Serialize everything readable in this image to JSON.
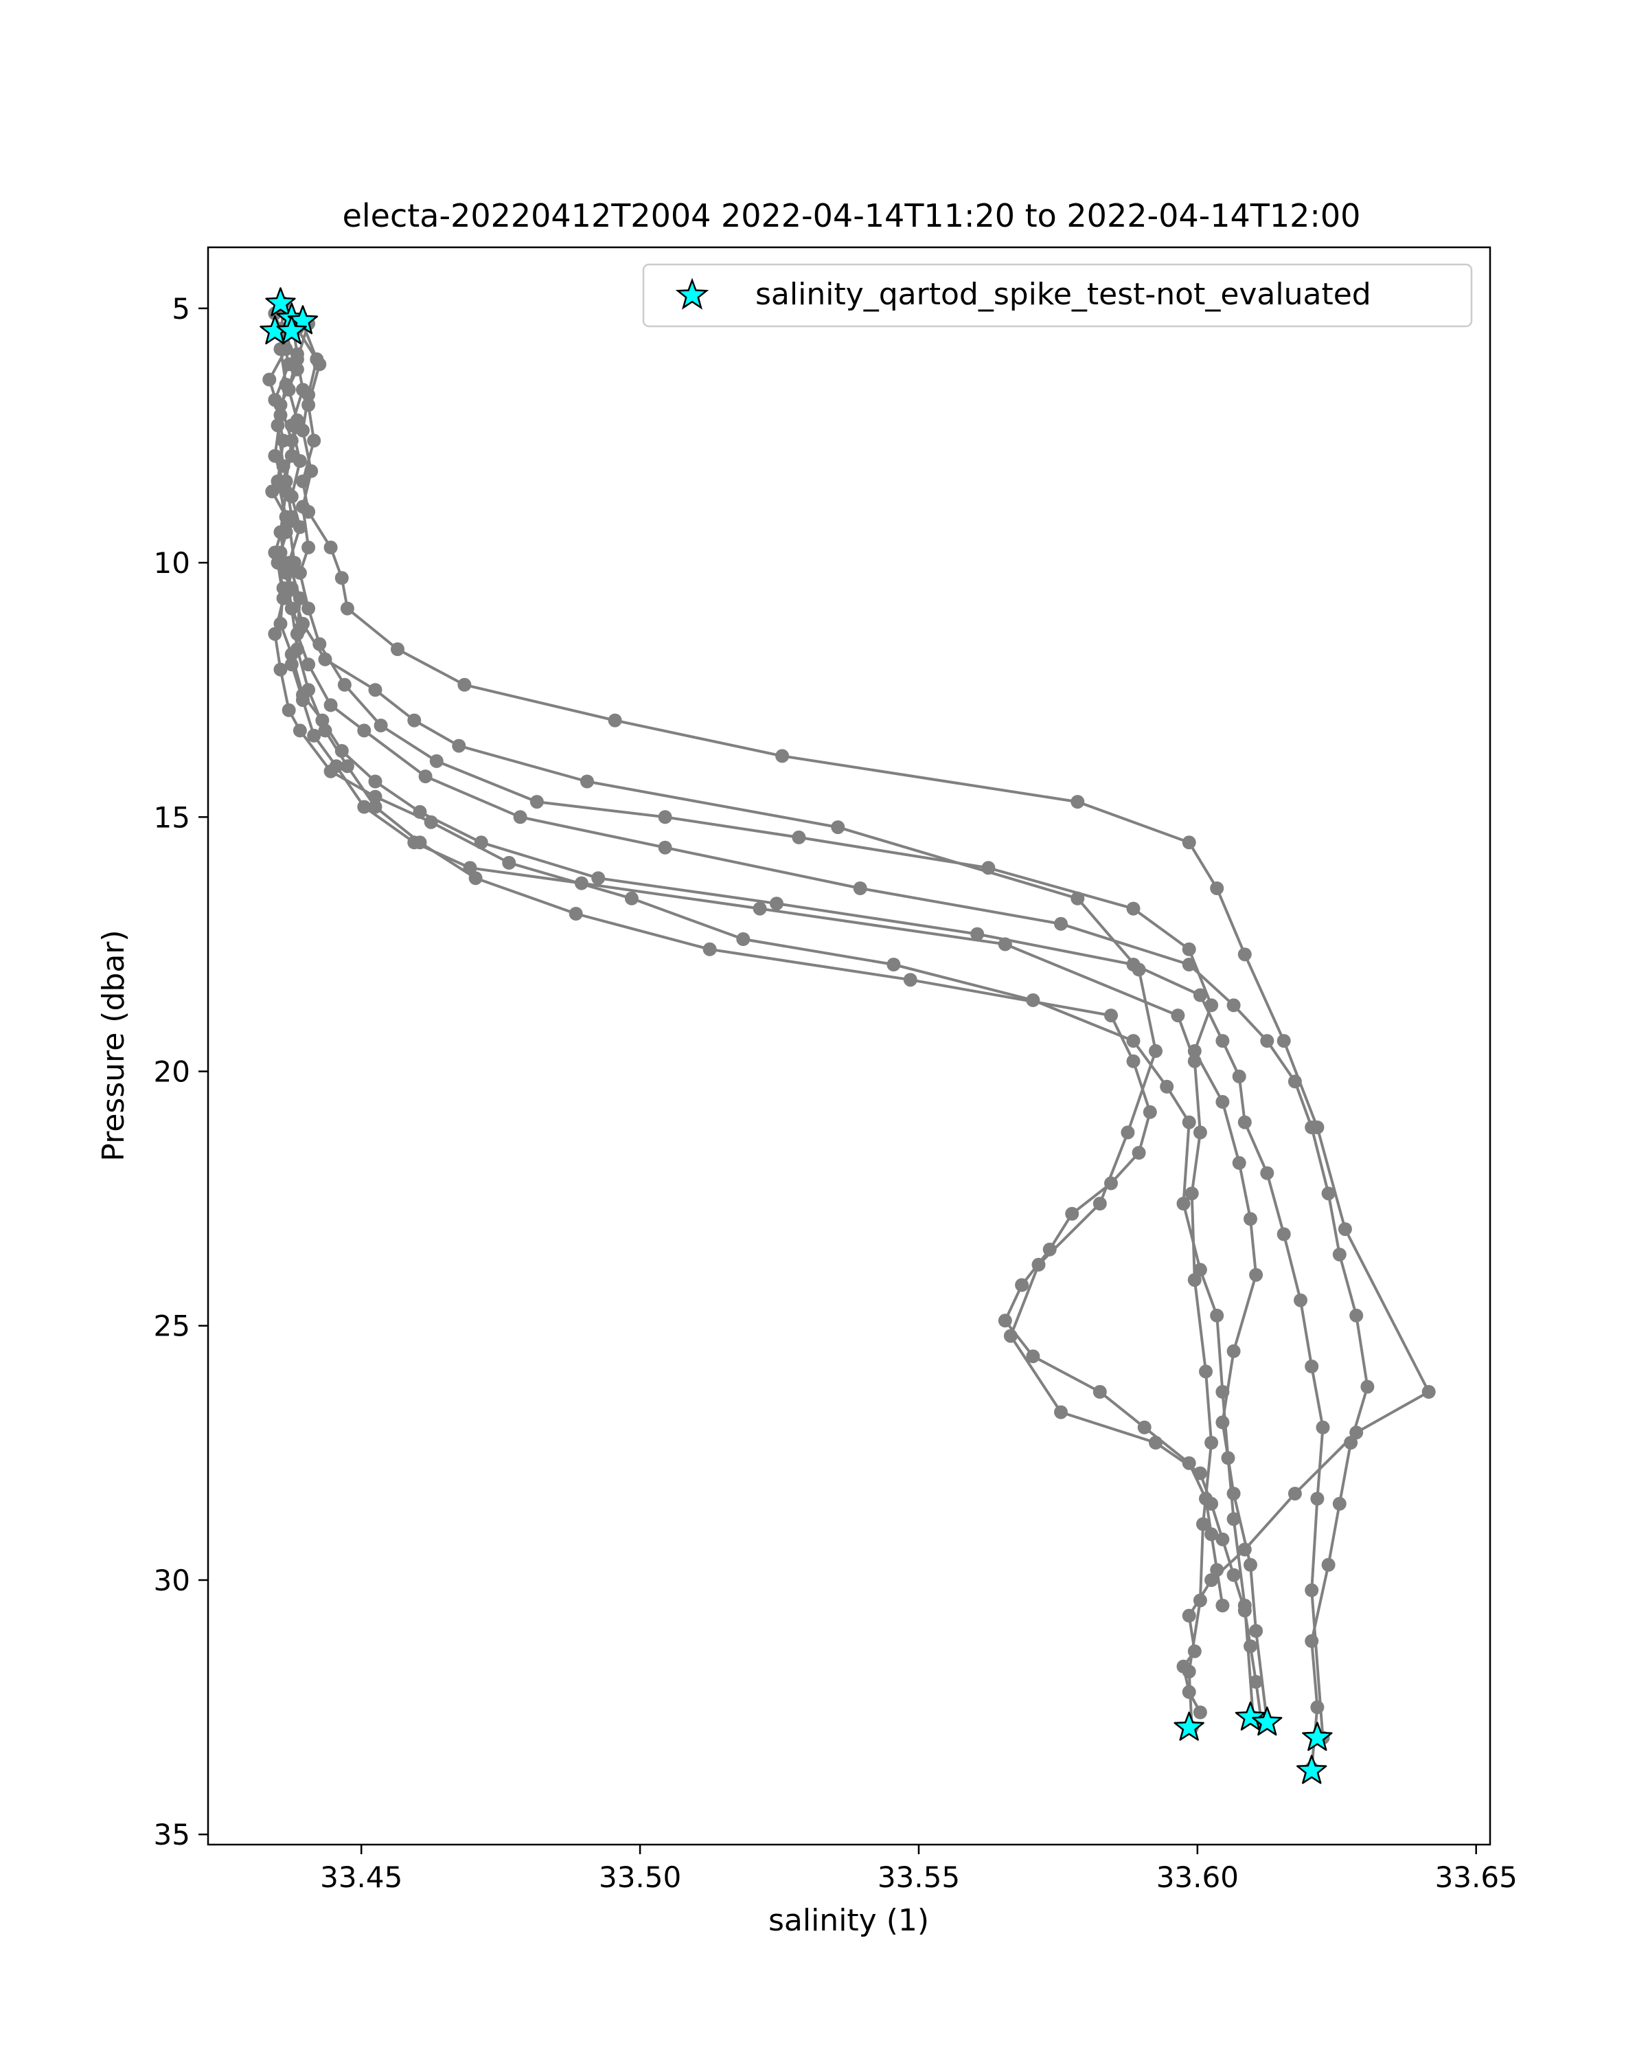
{
  "chart_data": {
    "type": "line",
    "title": "electa-20220412T2004 2022-04-14T11:20 to 2022-04-14T12:00",
    "xlabel": "salinity (1)",
    "ylabel": "Pressure (dbar)",
    "xlim": [
      33.4225,
      33.6525
    ],
    "ylim": [
      35.2,
      3.8
    ],
    "y_inverted": true,
    "xticks": [
      33.45,
      33.5,
      33.55,
      33.6,
      33.65
    ],
    "xtick_labels": [
      "33.45",
      "33.50",
      "33.55",
      "33.60",
      "33.65"
    ],
    "yticks": [
      5,
      10,
      15,
      20,
      25,
      30,
      35
    ],
    "ytick_labels": [
      "5",
      "10",
      "15",
      "20",
      "25",
      "30",
      "35"
    ],
    "grid": false,
    "legend_position": "top-right",
    "colors": {
      "profile": "#808080",
      "flag_fill": "#00ffff",
      "flag_edge": "#000000"
    },
    "series": [
      {
        "kind": "profile",
        "x": [
          33.436,
          33.4355,
          33.4365,
          33.435,
          33.436,
          33.434,
          33.437,
          33.438,
          33.4365,
          33.439,
          33.4375,
          33.4395,
          33.4415,
          33.4455,
          33.4505,
          33.4595,
          33.4695,
          33.4895,
          33.5215,
          33.5655,
          33.5965,
          33.5995,
          33.6005,
          33.599,
          33.5995,
          33.6015,
          33.6025,
          33.601,
          33.6005,
          33.5985,
          33.599
        ],
        "y": [
          4.9,
          5.8,
          6.5,
          7.3,
          8.1,
          8.6,
          9.2,
          10.0,
          10.6,
          11.3,
          12.0,
          12.7,
          13.4,
          14.0,
          14.8,
          15.5,
          16.0,
          16.3,
          16.8,
          17.5,
          18.9,
          19.8,
          21.2,
          22.4,
          24.1,
          25.9,
          27.3,
          28.9,
          30.4,
          31.8,
          32.9
        ]
      },
      {
        "kind": "profile",
        "x": [
          33.4375,
          33.4385,
          33.437,
          33.4385,
          33.4375,
          33.4355,
          33.4365,
          33.435,
          33.436,
          33.4345,
          33.4355,
          33.437,
          33.439,
          33.4445,
          33.4525,
          33.4625,
          33.4765,
          33.4985,
          33.5185,
          33.5455,
          33.5705,
          33.5885,
          33.5945,
          33.5985,
          33.5975,
          33.6005,
          33.6035,
          33.6045,
          33.6055,
          33.6065,
          33.6085,
          33.61
        ],
        "y": [
          5.2,
          5.9,
          6.6,
          7.2,
          7.9,
          8.5,
          9.4,
          10.0,
          10.7,
          11.4,
          12.1,
          12.9,
          13.3,
          14.1,
          14.6,
          15.1,
          15.9,
          16.6,
          17.4,
          17.9,
          18.6,
          19.4,
          20.3,
          21.0,
          22.6,
          23.9,
          24.8,
          26.3,
          27.6,
          28.8,
          30.5,
          32.7
        ]
      },
      {
        "kind": "profile",
        "x": [
          33.4395,
          33.442,
          33.4405,
          33.4395,
          33.441,
          33.4395,
          33.4405,
          33.439,
          33.4405,
          33.4425,
          33.447,
          33.4535,
          33.4635,
          33.4815,
          33.5045,
          33.5285,
          33.5625,
          33.5885,
          33.5985,
          33.6025,
          33.5995,
          33.6045,
          33.6075,
          33.6095,
          33.6105,
          33.6065,
          33.6045,
          33.6065,
          33.6095,
          33.6105,
          33.6125
        ],
        "y": [
          5.3,
          6.0,
          6.7,
          7.4,
          8.2,
          8.9,
          9.7,
          10.2,
          10.9,
          11.6,
          12.4,
          13.2,
          13.9,
          14.7,
          15.0,
          15.4,
          16.0,
          16.8,
          17.6,
          18.7,
          19.6,
          20.6,
          21.8,
          22.9,
          24.0,
          25.5,
          26.9,
          28.3,
          29.7,
          31.0,
          32.8
        ]
      },
      {
        "kind": "profile",
        "x": [
          33.4355,
          33.437,
          33.4345,
          33.436,
          33.435,
          33.4365,
          33.4345,
          33.436,
          33.4355,
          33.4375,
          33.4395,
          33.443,
          33.4465,
          33.4525,
          33.4605,
          33.4715,
          33.4925,
          33.5245,
          33.5605,
          33.5885,
          33.6005,
          33.6045,
          33.6075,
          33.6085,
          33.6125,
          33.6155,
          33.6185,
          33.6205,
          33.6225,
          33.6215,
          33.6205,
          33.6225
        ],
        "y": [
          5.4,
          6.1,
          6.8,
          7.6,
          8.4,
          9.1,
          9.8,
          10.5,
          11.2,
          11.8,
          12.6,
          13.1,
          13.7,
          14.3,
          14.9,
          15.5,
          16.2,
          16.7,
          17.3,
          17.9,
          18.5,
          19.4,
          20.1,
          21.0,
          22.0,
          23.2,
          24.5,
          25.8,
          27.0,
          28.4,
          30.2,
          33.1
        ]
      },
      {
        "kind": "profile",
        "x": [
          33.4405,
          33.4385,
          33.4395,
          33.4375,
          33.439,
          33.4375,
          33.439,
          33.437,
          33.439,
          33.4385,
          33.4405,
          33.4445,
          33.4505,
          33.4615,
          33.4785,
          33.5045,
          33.5395,
          33.5755,
          33.5985,
          33.6065,
          33.6125,
          33.6175,
          33.6205,
          33.6235,
          33.6255,
          33.6285,
          33.6305,
          33.6275,
          33.6255,
          33.6235,
          33.6205,
          33.6215,
          33.6205
        ],
        "y": [
          5.3,
          6.0,
          6.6,
          7.3,
          8.0,
          8.7,
          9.3,
          10.0,
          10.7,
          11.4,
          12.0,
          12.8,
          13.3,
          14.2,
          15.0,
          15.6,
          16.4,
          17.1,
          17.9,
          18.7,
          19.4,
          20.2,
          21.1,
          22.4,
          23.6,
          24.8,
          26.2,
          27.3,
          28.5,
          29.7,
          31.2,
          32.5,
          33.7
        ]
      },
      {
        "kind": "profile",
        "x": [
          33.4385,
          33.4425,
          33.4405,
          33.4415,
          33.4395,
          33.4405,
          33.4445,
          33.4465,
          33.4475,
          33.4565,
          33.4685,
          33.4955,
          33.5255,
          33.5785,
          33.5985,
          33.6035,
          33.6085,
          33.6155,
          33.6215,
          33.6265,
          33.6415,
          33.6285,
          33.6175,
          33.6085,
          33.6025,
          33.5985,
          33.5995,
          33.5975,
          33.5985,
          33.6005
        ],
        "y": [
          5.4,
          6.1,
          6.9,
          7.6,
          8.4,
          9.0,
          9.7,
          10.3,
          10.9,
          11.7,
          12.4,
          13.1,
          13.8,
          14.7,
          15.5,
          16.4,
          17.7,
          19.4,
          21.1,
          23.1,
          26.3,
          27.1,
          28.3,
          29.4,
          30.0,
          30.7,
          31.4,
          31.7,
          32.2,
          32.6
        ]
      },
      {
        "kind": "profile",
        "x": [
          33.4345,
          33.4365,
          33.4335,
          33.4355,
          33.4345,
          33.4365,
          33.4355,
          33.4365,
          33.4375,
          33.4385,
          33.4405,
          33.4435,
          33.4475,
          33.4525,
          33.4605,
          33.4705,
          33.4885,
          33.5125,
          33.5485,
          33.5845,
          33.5885,
          33.5915,
          33.5895,
          33.5845,
          33.5775,
          33.5735,
          33.5685,
          33.5655,
          33.5705,
          33.5825,
          33.5905,
          33.5985,
          33.6015,
          33.6025,
          33.6035,
          33.6045
        ],
        "y": [
          5.1,
          5.8,
          6.4,
          7.1,
          7.9,
          8.6,
          9.4,
          10.2,
          10.9,
          11.7,
          12.5,
          13.3,
          14.0,
          14.8,
          15.5,
          16.2,
          16.9,
          17.6,
          18.2,
          18.9,
          19.8,
          20.8,
          21.6,
          22.2,
          22.8,
          23.5,
          24.2,
          24.9,
          25.6,
          26.3,
          27.0,
          27.7,
          28.4,
          29.1,
          29.8,
          30.5
        ]
      },
      {
        "kind": "profile",
        "x": [
          33.4365,
          33.4385,
          33.4355,
          33.4375,
          33.4365,
          33.4375,
          33.4355,
          33.4375,
          33.4395,
          33.4435,
          33.4525,
          33.4595,
          33.4675,
          33.4905,
          33.5355,
          33.5785,
          33.5895,
          33.5925,
          33.5875,
          33.5825,
          33.5715,
          33.5665,
          33.5755,
          33.5925,
          33.6005,
          33.6025,
          33.6045,
          33.6065,
          33.6085,
          33.6095,
          33.6105,
          33.6115
        ],
        "y": [
          5.5,
          6.2,
          6.9,
          7.6,
          8.4,
          9.1,
          9.8,
          10.5,
          11.2,
          11.9,
          12.5,
          13.1,
          13.6,
          14.3,
          15.2,
          16.6,
          18.0,
          19.6,
          21.2,
          22.6,
          23.8,
          25.2,
          26.7,
          27.3,
          27.9,
          28.5,
          29.2,
          29.9,
          30.6,
          31.3,
          32.0,
          32.8
        ]
      }
    ],
    "flagged_points": {
      "name": "salinity_qartod_spike_test-not_evaluated",
      "marker": "star",
      "points": [
        {
          "x": 33.4355,
          "y": 4.9
        },
        {
          "x": 33.4375,
          "y": 5.2
        },
        {
          "x": 33.4395,
          "y": 5.25
        },
        {
          "x": 33.4345,
          "y": 5.45
        },
        {
          "x": 33.4375,
          "y": 5.45
        },
        {
          "x": 33.5985,
          "y": 32.9
        },
        {
          "x": 33.6095,
          "y": 32.7
        },
        {
          "x": 33.6125,
          "y": 32.8
        },
        {
          "x": 33.6215,
          "y": 33.1
        },
        {
          "x": 33.6205,
          "y": 33.75
        }
      ]
    }
  }
}
